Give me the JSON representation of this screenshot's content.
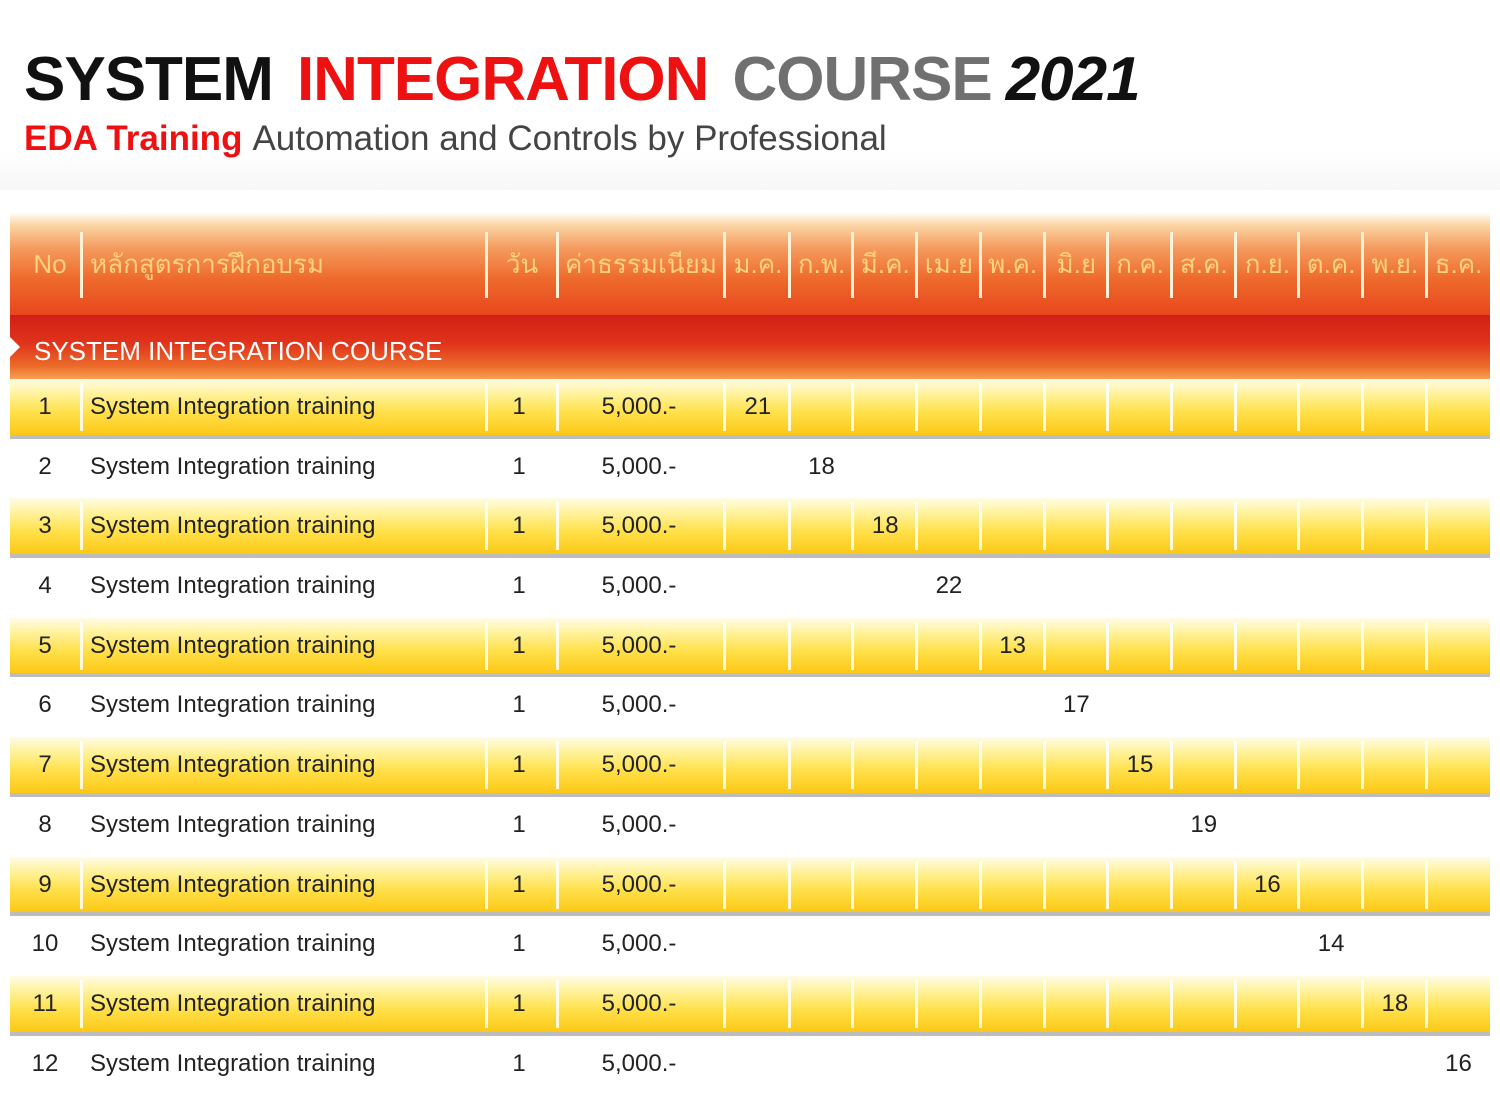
{
  "title": {
    "part1": "SYSTEM",
    "part2": "INTEGRATION",
    "part3": "COURSE",
    "part4": "2021"
  },
  "subtitle": {
    "brand": "EDA Training",
    "rest": "Automation and Controls by Professional"
  },
  "colors": {
    "accent_red": "#ee1111",
    "header_orange": "#e8471d",
    "row_yellow": "#ffe04a",
    "header_text": "#ffd37a"
  },
  "table": {
    "headers": {
      "no": "No",
      "course": "หลักสูตรการฝึกอบรม",
      "days": "วัน",
      "fee": "ค่าธรรมเนียม",
      "months": [
        "ม.ค.",
        "ก.พ.",
        "มี.ค.",
        "เม.ย",
        "พ.ค.",
        "มิ.ย",
        "ก.ค.",
        "ส.ค.",
        "ก.ย.",
        "ต.ค.",
        "พ.ย.",
        "ธ.ค."
      ]
    },
    "section_title": "SYSTEM INTEGRATION COURSE",
    "rows": [
      {
        "no": "1",
        "name": "System Integration training",
        "days": "1",
        "fee": "5,000.-",
        "month_index": 0,
        "date": "21"
      },
      {
        "no": "2",
        "name": "System Integration training",
        "days": "1",
        "fee": "5,000.-",
        "month_index": 1,
        "date": "18"
      },
      {
        "no": "3",
        "name": "System Integration training",
        "days": "1",
        "fee": "5,000.-",
        "month_index": 2,
        "date": "18"
      },
      {
        "no": "4",
        "name": "System Integration training",
        "days": "1",
        "fee": "5,000.-",
        "month_index": 3,
        "date": "22"
      },
      {
        "no": "5",
        "name": "System Integration training",
        "days": "1",
        "fee": "5,000.-",
        "month_index": 4,
        "date": "13"
      },
      {
        "no": "6",
        "name": "System Integration training",
        "days": "1",
        "fee": "5,000.-",
        "month_index": 5,
        "date": "17"
      },
      {
        "no": "7",
        "name": "System Integration training",
        "days": "1",
        "fee": "5,000.-",
        "month_index": 6,
        "date": "15"
      },
      {
        "no": "8",
        "name": "System Integration training",
        "days": "1",
        "fee": "5,000.-",
        "month_index": 7,
        "date": "19"
      },
      {
        "no": "9",
        "name": "System Integration training",
        "days": "1",
        "fee": "5,000.-",
        "month_index": 8,
        "date": "16"
      },
      {
        "no": "10",
        "name": "System Integration training",
        "days": "1",
        "fee": "5,000.-",
        "month_index": 9,
        "date": "14"
      },
      {
        "no": "11",
        "name": "System Integration training",
        "days": "1",
        "fee": "5,000.-",
        "month_index": 10,
        "date": "18"
      },
      {
        "no": "12",
        "name": "System Integration training",
        "days": "1",
        "fee": "5,000.-",
        "month_index": 11,
        "date": "16"
      }
    ]
  }
}
